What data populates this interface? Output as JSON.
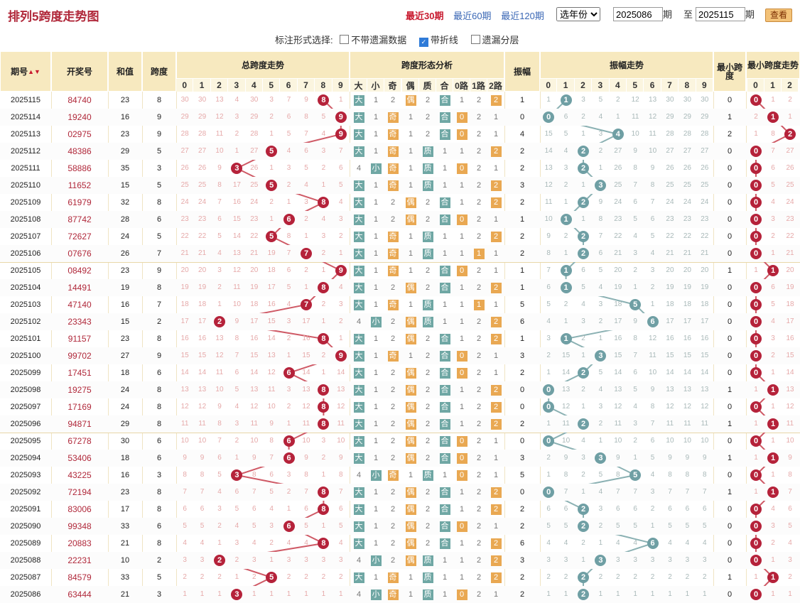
{
  "header": {
    "title": "排列5跨度走势图",
    "tabs": [
      "最近30期",
      "最近60期",
      "最近120期"
    ],
    "active_tab": 0,
    "year_select": "选年份",
    "from_label": "期",
    "to_prefix": "至",
    "to_label": "期",
    "period_from": "2025086",
    "period_to": "2025115",
    "query_button": "查看"
  },
  "options": {
    "label": "标注形式选择:",
    "items": [
      {
        "label": "不带遗漏数据",
        "checked": false
      },
      {
        "label": "带折线",
        "checked": true
      },
      {
        "label": "遗漏分层",
        "checked": false
      }
    ]
  },
  "columns": {
    "period": "期号",
    "draw": "开奖号",
    "sum": "和值",
    "span": "跨度",
    "span_trend": "总跨度走势",
    "shape": "跨度形态分析",
    "amp": "振幅",
    "amp_trend": "振幅走势",
    "min_span": "最小跨度",
    "min_span_trend": "最小跨度走势",
    "digits": [
      "0",
      "1",
      "2",
      "3",
      "4",
      "5",
      "6",
      "7",
      "8",
      "9"
    ],
    "shape_heads": [
      "大",
      "小",
      "奇",
      "偶",
      "质",
      "合",
      "0路",
      "1路",
      "2路"
    ],
    "min_digits": [
      "0",
      "1",
      "2"
    ]
  },
  "rows": [
    {
      "p": "2025115",
      "d": "84740",
      "s": "23",
      "k": "8",
      "a": "1",
      "m": "0"
    },
    {
      "p": "2025114",
      "d": "19240",
      "s": "16",
      "k": "9",
      "a": "0",
      "m": "1"
    },
    {
      "p": "2025113",
      "d": "02975",
      "s": "23",
      "k": "9",
      "a": "4",
      "m": "2"
    },
    {
      "p": "2025112",
      "d": "48386",
      "s": "29",
      "k": "5",
      "a": "2",
      "m": "0"
    },
    {
      "p": "2025111",
      "d": "58886",
      "s": "35",
      "k": "3",
      "a": "2",
      "m": "0"
    },
    {
      "p": "2025110",
      "d": "11652",
      "s": "15",
      "k": "5",
      "a": "3",
      "m": "0"
    },
    {
      "p": "2025109",
      "d": "61979",
      "s": "32",
      "k": "8",
      "a": "2",
      "m": "0"
    },
    {
      "p": "2025108",
      "d": "87742",
      "s": "28",
      "k": "6",
      "a": "1",
      "m": "0"
    },
    {
      "p": "2025107",
      "d": "72627",
      "s": "24",
      "k": "5",
      "a": "2",
      "m": "0"
    },
    {
      "p": "2025106",
      "d": "07676",
      "s": "26",
      "k": "7",
      "a": "2",
      "m": "0"
    },
    {
      "p": "2025105",
      "d": "08492",
      "s": "23",
      "k": "9",
      "a": "1",
      "m": "1"
    },
    {
      "p": "2025104",
      "d": "14491",
      "s": "19",
      "k": "8",
      "a": "1",
      "m": "0"
    },
    {
      "p": "2025103",
      "d": "47140",
      "s": "16",
      "k": "7",
      "a": "5",
      "m": "0"
    },
    {
      "p": "2025102",
      "d": "23343",
      "s": "15",
      "k": "2",
      "a": "6",
      "m": "0"
    },
    {
      "p": "2025101",
      "d": "91157",
      "s": "23",
      "k": "8",
      "a": "1",
      "m": "0"
    },
    {
      "p": "2025100",
      "d": "99702",
      "s": "27",
      "k": "9",
      "a": "3",
      "m": "0"
    },
    {
      "p": "2025099",
      "d": "17451",
      "s": "18",
      "k": "6",
      "a": "2",
      "m": "0"
    },
    {
      "p": "2025098",
      "d": "19275",
      "s": "24",
      "k": "8",
      "a": "0",
      "m": "1"
    },
    {
      "p": "2025097",
      "d": "17169",
      "s": "24",
      "k": "8",
      "a": "0",
      "m": "0"
    },
    {
      "p": "2025096",
      "d": "94871",
      "s": "29",
      "k": "8",
      "a": "2",
      "m": "1"
    },
    {
      "p": "2025095",
      "d": "67278",
      "s": "30",
      "k": "6",
      "a": "0",
      "m": "0"
    },
    {
      "p": "2025094",
      "d": "53406",
      "s": "18",
      "k": "6",
      "a": "3",
      "m": "1"
    },
    {
      "p": "2025093",
      "d": "43225",
      "s": "16",
      "k": "3",
      "a": "5",
      "m": "0"
    },
    {
      "p": "2025092",
      "d": "72194",
      "s": "23",
      "k": "8",
      "a": "0",
      "m": "1"
    },
    {
      "p": "2025091",
      "d": "83006",
      "s": "17",
      "k": "8",
      "a": "2",
      "m": "0"
    },
    {
      "p": "2025090",
      "d": "99348",
      "s": "33",
      "k": "6",
      "a": "2",
      "m": "0"
    },
    {
      "p": "2025089",
      "d": "20883",
      "s": "21",
      "k": "8",
      "a": "6",
      "m": "0"
    },
    {
      "p": "2025088",
      "d": "22231",
      "s": "10",
      "k": "2",
      "a": "3",
      "m": "0"
    },
    {
      "p": "2025087",
      "d": "84579",
      "s": "33",
      "k": "5",
      "a": "2",
      "m": "1"
    },
    {
      "p": "2025086",
      "d": "63444",
      "s": "21",
      "k": "3",
      "a": "2",
      "m": "0"
    }
  ]
}
